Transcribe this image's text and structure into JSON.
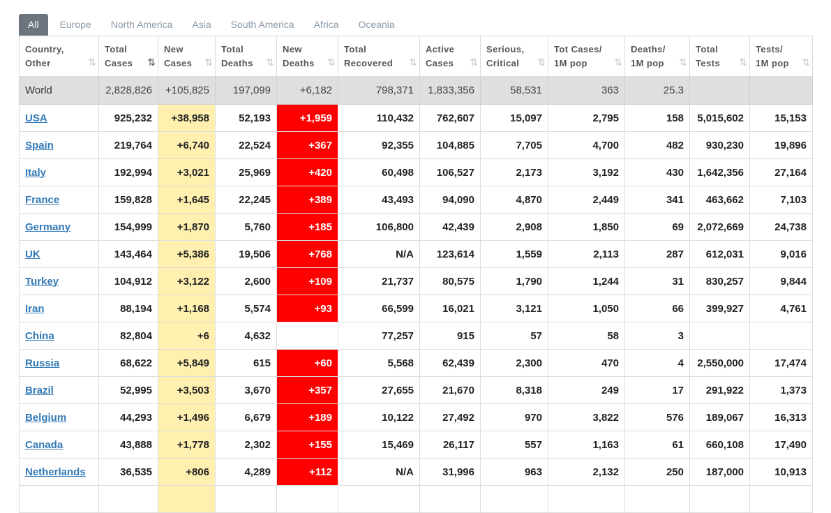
{
  "tabs": [
    "All",
    "Europe",
    "North America",
    "Asia",
    "South America",
    "Africa",
    "Oceania"
  ],
  "headers": [
    [
      "Country,",
      "Other"
    ],
    [
      "Total",
      "Cases"
    ],
    [
      "New",
      "Cases"
    ],
    [
      "Total",
      "Deaths"
    ],
    [
      "New",
      "Deaths"
    ],
    [
      "Total",
      "Recovered"
    ],
    [
      "Active",
      "Cases"
    ],
    [
      "Serious,",
      "Critical"
    ],
    [
      "Tot Cases/",
      "1M pop"
    ],
    [
      "Deaths/",
      "1M pop"
    ],
    [
      "Total",
      "Tests"
    ],
    [
      "Tests/",
      "1M pop"
    ]
  ],
  "sort_icon": "⇅",
  "world": [
    "World",
    "2,828,826",
    "+105,825",
    "197,099",
    "+6,182",
    "798,371",
    "1,833,356",
    "58,531",
    "363",
    "25.3",
    "",
    ""
  ],
  "rows": [
    [
      "USA",
      "925,232",
      "+38,958",
      "52,193",
      "+1,959",
      "110,432",
      "762,607",
      "15,097",
      "2,795",
      "158",
      "5,015,602",
      "15,153"
    ],
    [
      "Spain",
      "219,764",
      "+6,740",
      "22,524",
      "+367",
      "92,355",
      "104,885",
      "7,705",
      "4,700",
      "482",
      "930,230",
      "19,896"
    ],
    [
      "Italy",
      "192,994",
      "+3,021",
      "25,969",
      "+420",
      "60,498",
      "106,527",
      "2,173",
      "3,192",
      "430",
      "1,642,356",
      "27,164"
    ],
    [
      "France",
      "159,828",
      "+1,645",
      "22,245",
      "+389",
      "43,493",
      "94,090",
      "4,870",
      "2,449",
      "341",
      "463,662",
      "7,103"
    ],
    [
      "Germany",
      "154,999",
      "+1,870",
      "5,760",
      "+185",
      "106,800",
      "42,439",
      "2,908",
      "1,850",
      "69",
      "2,072,669",
      "24,738"
    ],
    [
      "UK",
      "143,464",
      "+5,386",
      "19,506",
      "+768",
      "N/A",
      "123,614",
      "1,559",
      "2,113",
      "287",
      "612,031",
      "9,016"
    ],
    [
      "Turkey",
      "104,912",
      "+3,122",
      "2,600",
      "+109",
      "21,737",
      "80,575",
      "1,790",
      "1,244",
      "31",
      "830,257",
      "9,844"
    ],
    [
      "Iran",
      "88,194",
      "+1,168",
      "5,574",
      "+93",
      "66,599",
      "16,021",
      "3,121",
      "1,050",
      "66",
      "399,927",
      "4,761"
    ],
    [
      "China",
      "82,804",
      "+6",
      "4,632",
      "",
      "77,257",
      "915",
      "57",
      "58",
      "3",
      "",
      ""
    ],
    [
      "Russia",
      "68,622",
      "+5,849",
      "615",
      "+60",
      "5,568",
      "62,439",
      "2,300",
      "470",
      "4",
      "2,550,000",
      "17,474"
    ],
    [
      "Brazil",
      "52,995",
      "+3,503",
      "3,670",
      "+357",
      "27,655",
      "21,670",
      "8,318",
      "249",
      "17",
      "291,922",
      "1,373"
    ],
    [
      "Belgium",
      "44,293",
      "+1,496",
      "6,679",
      "+189",
      "10,122",
      "27,492",
      "970",
      "3,822",
      "576",
      "189,067",
      "16,313"
    ],
    [
      "Canada",
      "43,888",
      "+1,778",
      "2,302",
      "+155",
      "15,469",
      "26,117",
      "557",
      "1,163",
      "61",
      "660,108",
      "17,490"
    ],
    [
      "Netherlands",
      "36,535",
      "+806",
      "4,289",
      "+112",
      "N/A",
      "31,996",
      "963",
      "2,132",
      "250",
      "187,000",
      "10,913"
    ],
    [
      "",
      "",
      "",
      "",
      "",
      "",
      "",
      "",
      "",
      "",
      "",
      ""
    ]
  ],
  "colors": {
    "new_cases_bg": "#fff0b0",
    "new_deaths_bg": "#ff0000",
    "world_bg": "#dfdfdf",
    "link": "#337ab7",
    "active_tab": "#6c757d"
  }
}
